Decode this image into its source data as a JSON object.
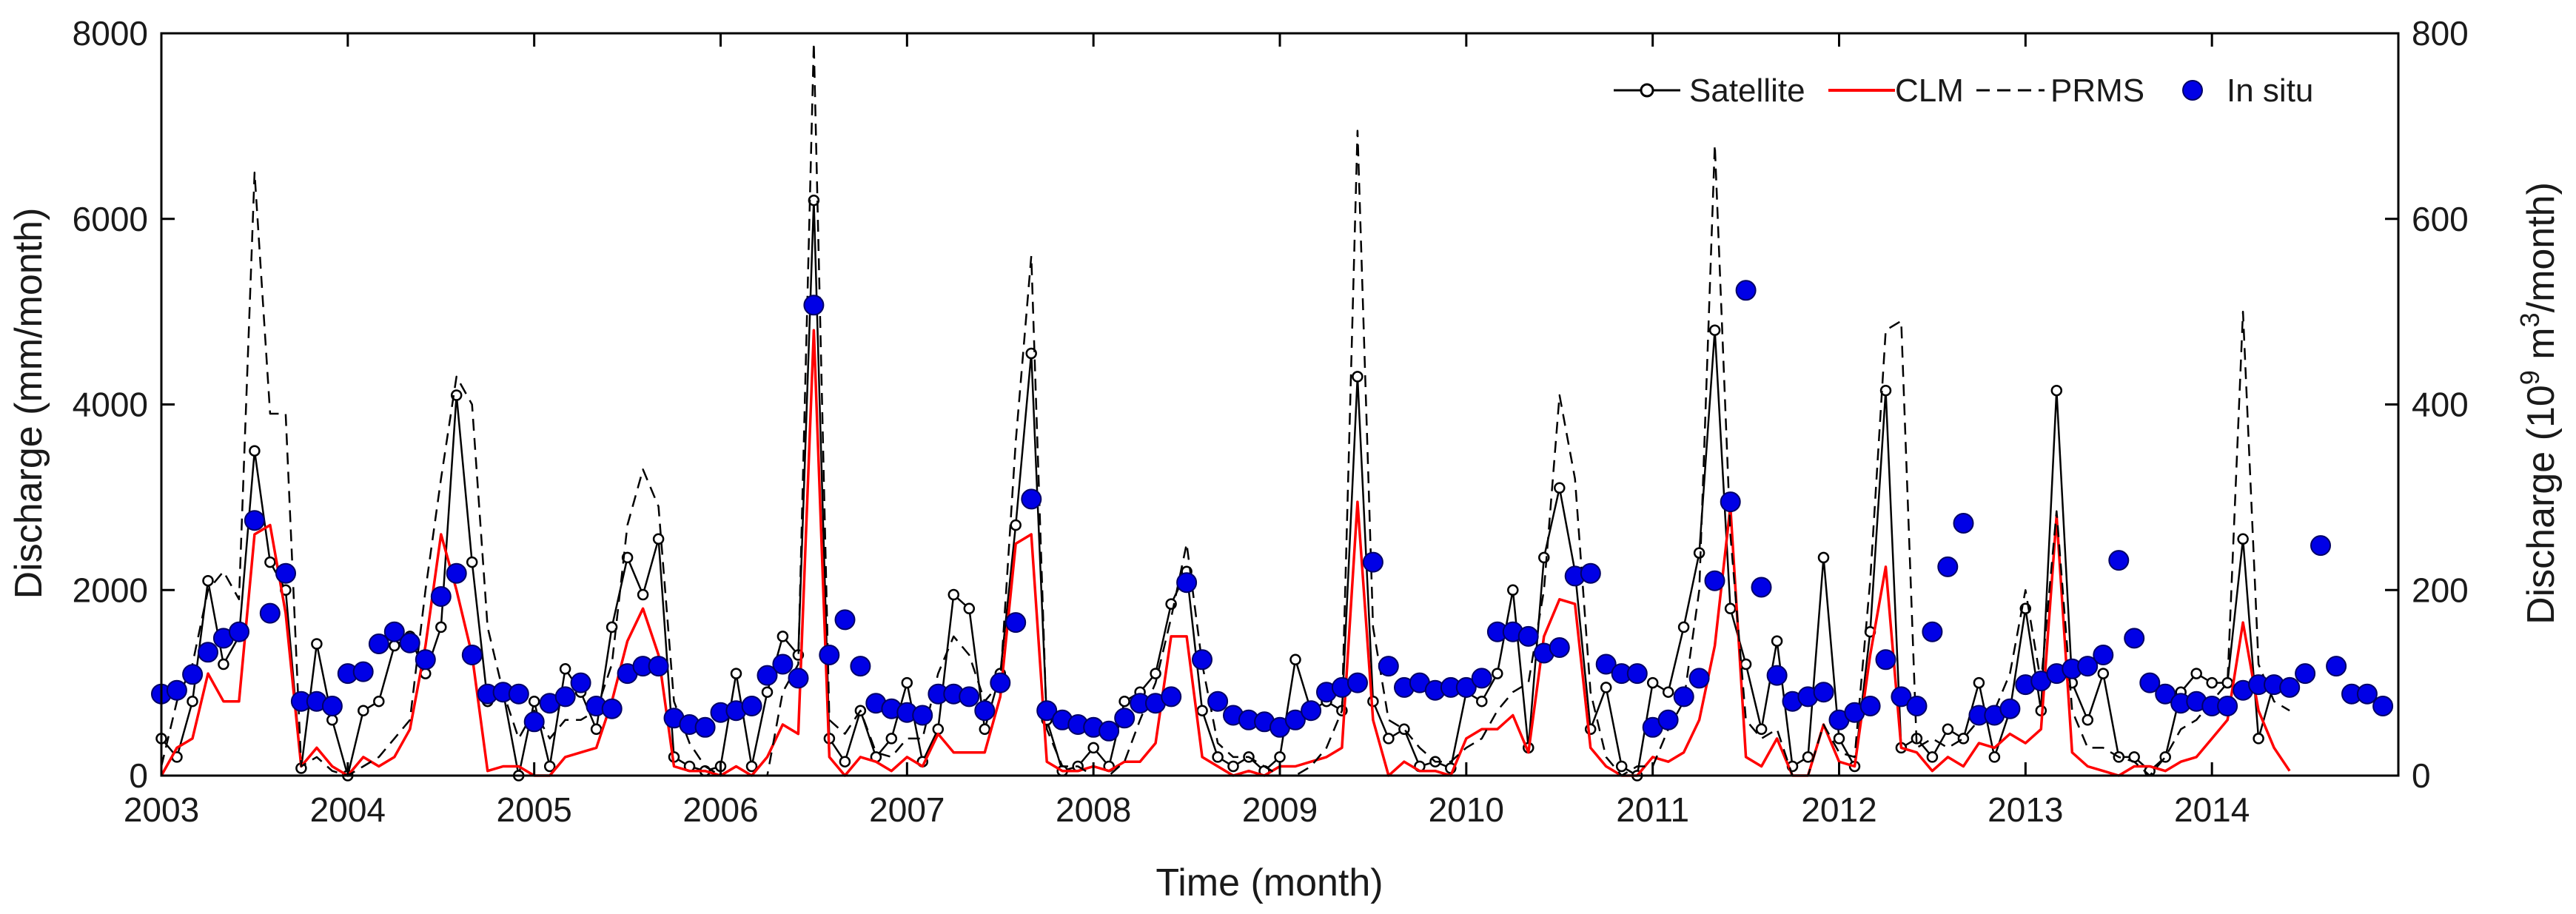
{
  "chart_data": {
    "type": "line",
    "title": "",
    "xlabel": "Time (month)",
    "ylabel_left": "Discharge (mm/month)",
    "ylabel_right_parts": [
      "Discharge (10",
      "9",
      " m",
      "3",
      "/month)"
    ],
    "xlim": [
      2003.0,
      2015.0
    ],
    "ylim_left": [
      0,
      8000
    ],
    "ylim_right": [
      0,
      800
    ],
    "x_ticks": [
      2003,
      2004,
      2005,
      2006,
      2007,
      2008,
      2009,
      2010,
      2011,
      2012,
      2013,
      2014
    ],
    "y_ticks_left": [
      0,
      2000,
      4000,
      6000,
      8000
    ],
    "y_ticks_right": [
      0,
      200,
      400,
      600,
      800
    ],
    "legend_position": "top-right",
    "legend": [
      "Satellite",
      "CLM",
      "PRMS",
      "In situ"
    ],
    "series": [
      {
        "name": "Satellite",
        "axis": "left",
        "style": "line-open-circle",
        "color": "#000000",
        "values": [
          400,
          200,
          800,
          2100,
          1200,
          1500,
          3500,
          2300,
          2000,
          80,
          1420,
          600,
          0,
          700,
          800,
          1400,
          1500,
          1100,
          1600,
          4100,
          2300,
          800,
          900,
          0,
          800,
          100,
          1150,
          900,
          500,
          1600,
          2350,
          1950,
          2550,
          200,
          100,
          50,
          100,
          1100,
          100,
          900,
          1500,
          1300,
          6200,
          400,
          150,
          700,
          200,
          400,
          1000,
          150,
          500,
          1950,
          1800,
          500,
          1100,
          2700,
          4550,
          600,
          50,
          100,
          300,
          100,
          800,
          900,
          1100,
          1850,
          2200,
          700,
          200,
          100,
          200,
          50,
          200,
          1250,
          700,
          800,
          700,
          4300,
          800,
          400,
          500,
          100,
          150,
          80,
          900,
          800,
          1100,
          2000,
          300,
          2350,
          3100,
          2200,
          500,
          950,
          100,
          0,
          1000,
          900,
          1600,
          2400,
          4800,
          1800,
          1200,
          500,
          1450,
          100,
          200,
          2350,
          400,
          100,
          1550,
          4150,
          300,
          400,
          200,
          500,
          400,
          1000,
          200,
          700,
          1800,
          700,
          4150,
          1000,
          600,
          1100,
          200,
          200,
          50,
          200,
          900,
          1100,
          1000,
          1000,
          2550,
          400,
          1000,
          1000
        ]
      },
      {
        "name": "CLM",
        "axis": "left",
        "style": "line",
        "color": "#ff0000",
        "values": [
          0,
          300,
          400,
          1100,
          800,
          800,
          2600,
          2700,
          1750,
          100,
          300,
          100,
          0,
          200,
          100,
          200,
          500,
          1400,
          2600,
          2000,
          1300,
          50,
          100,
          100,
          0,
          0,
          200,
          250,
          300,
          800,
          1450,
          1800,
          1300,
          100,
          50,
          50,
          0,
          100,
          0,
          200,
          550,
          450,
          4800,
          200,
          0,
          200,
          150,
          50,
          200,
          100,
          450,
          250,
          250,
          250,
          850,
          2500,
          2600,
          150,
          50,
          50,
          100,
          50,
          150,
          150,
          350,
          1500,
          1500,
          200,
          100,
          0,
          50,
          0,
          100,
          100,
          150,
          200,
          300,
          2950,
          600,
          0,
          150,
          50,
          50,
          0,
          400,
          500,
          500,
          650,
          250,
          1500,
          1900,
          1850,
          300,
          100,
          0,
          0,
          200,
          150,
          250,
          600,
          1400,
          2900,
          200,
          100,
          400,
          0,
          0,
          550,
          150,
          100,
          1300,
          2250,
          300,
          250,
          50,
          200,
          100,
          350,
          300,
          450,
          350,
          500,
          2800,
          250,
          100,
          50,
          0,
          100,
          100,
          50,
          150,
          200,
          400,
          600,
          1650,
          700,
          300,
          50
        ]
      },
      {
        "name": "PRMS",
        "axis": "left",
        "style": "dashed",
        "color": "#000000",
        "values": [
          100,
          800,
          1200,
          2000,
          2200,
          1900,
          6500,
          3900,
          3900,
          100,
          200,
          50,
          0,
          100,
          200,
          400,
          600,
          2000,
          3200,
          4300,
          4000,
          1600,
          900,
          400,
          700,
          400,
          600,
          600,
          700,
          1200,
          2700,
          3300,
          2900,
          800,
          350,
          100,
          0,
          0,
          0,
          0,
          900,
          1200,
          7900,
          600,
          450,
          700,
          250,
          200,
          400,
          400,
          1100,
          1500,
          1300,
          800,
          1000,
          3600,
          5600,
          500,
          100,
          100,
          0,
          0,
          150,
          600,
          1000,
          1700,
          2500,
          1200,
          350,
          200,
          200,
          100,
          0,
          0,
          100,
          300,
          700,
          6950,
          1600,
          600,
          500,
          300,
          150,
          150,
          300,
          400,
          700,
          900,
          1000,
          2000,
          4100,
          3200,
          900,
          200,
          0,
          100,
          100,
          500,
          800,
          2000,
          6800,
          2600,
          600,
          400,
          500,
          0,
          0,
          550,
          250,
          200,
          2100,
          4800,
          4900,
          300,
          400,
          300,
          400,
          600,
          700,
          1100,
          2000,
          1000,
          2850,
          700,
          300,
          300,
          200,
          150,
          0,
          200,
          500,
          600,
          800,
          1000,
          5000,
          1200,
          800,
          700
        ]
      },
      {
        "name": "In situ",
        "axis": "right",
        "style": "markers",
        "color": "#0000e6",
        "points": [
          [
            2003.0,
            88
          ],
          [
            2003.083,
            92
          ],
          [
            2003.167,
            109
          ],
          [
            2003.25,
            133
          ],
          [
            2003.333,
            148
          ],
          [
            2003.417,
            155
          ],
          [
            2003.5,
            275
          ],
          [
            2003.583,
            175
          ],
          [
            2003.667,
            218
          ],
          [
            2003.75,
            80
          ],
          [
            2003.833,
            80
          ],
          [
            2003.917,
            75
          ],
          [
            2004.0,
            110
          ],
          [
            2004.083,
            112
          ],
          [
            2004.167,
            142
          ],
          [
            2004.25,
            155
          ],
          [
            2004.333,
            143
          ],
          [
            2004.417,
            125
          ],
          [
            2004.5,
            193
          ],
          [
            2004.583,
            218
          ],
          [
            2004.667,
            130
          ],
          [
            2004.75,
            88
          ],
          [
            2004.833,
            90
          ],
          [
            2004.917,
            88
          ],
          [
            2005.0,
            58
          ],
          [
            2005.083,
            78
          ],
          [
            2005.167,
            85
          ],
          [
            2005.25,
            100
          ],
          [
            2005.333,
            75
          ],
          [
            2005.417,
            72
          ],
          [
            2005.5,
            110
          ],
          [
            2005.583,
            118
          ],
          [
            2005.667,
            118
          ],
          [
            2005.75,
            62
          ],
          [
            2005.833,
            55
          ],
          [
            2005.917,
            52
          ],
          [
            2006.0,
            68
          ],
          [
            2006.083,
            70
          ],
          [
            2006.167,
            75
          ],
          [
            2006.25,
            108
          ],
          [
            2006.333,
            120
          ],
          [
            2006.417,
            105
          ],
          [
            2006.5,
            507
          ],
          [
            2006.583,
            130
          ],
          [
            2006.667,
            168
          ],
          [
            2006.75,
            118
          ],
          [
            2006.833,
            78
          ],
          [
            2006.917,
            72
          ],
          [
            2007.0,
            68
          ],
          [
            2007.083,
            65
          ],
          [
            2007.167,
            88
          ],
          [
            2007.25,
            88
          ],
          [
            2007.333,
            85
          ],
          [
            2007.417,
            70
          ],
          [
            2007.5,
            100
          ],
          [
            2007.583,
            165
          ],
          [
            2007.667,
            298
          ],
          [
            2007.75,
            70
          ],
          [
            2007.833,
            60
          ],
          [
            2007.917,
            55
          ],
          [
            2008.0,
            52
          ],
          [
            2008.083,
            48
          ],
          [
            2008.167,
            62
          ],
          [
            2008.25,
            78
          ],
          [
            2008.333,
            78
          ],
          [
            2008.417,
            85
          ],
          [
            2008.5,
            208
          ],
          [
            2008.583,
            125
          ],
          [
            2008.667,
            80
          ],
          [
            2008.75,
            65
          ],
          [
            2008.833,
            60
          ],
          [
            2008.917,
            58
          ],
          [
            2009.0,
            52
          ],
          [
            2009.083,
            60
          ],
          [
            2009.167,
            70
          ],
          [
            2009.25,
            90
          ],
          [
            2009.333,
            95
          ],
          [
            2009.417,
            100
          ],
          [
            2009.5,
            230
          ],
          [
            2009.583,
            118
          ],
          [
            2009.667,
            95
          ],
          [
            2009.75,
            100
          ],
          [
            2009.833,
            92
          ],
          [
            2009.917,
            95
          ],
          [
            2010.0,
            95
          ],
          [
            2010.083,
            105
          ],
          [
            2010.167,
            155
          ],
          [
            2010.25,
            155
          ],
          [
            2010.333,
            150
          ],
          [
            2010.417,
            132
          ],
          [
            2010.5,
            138
          ],
          [
            2010.583,
            215
          ],
          [
            2010.667,
            218
          ],
          [
            2010.75,
            120
          ],
          [
            2010.833,
            110
          ],
          [
            2010.917,
            110
          ],
          [
            2011.0,
            52
          ],
          [
            2011.083,
            60
          ],
          [
            2011.167,
            85
          ],
          [
            2011.25,
            105
          ],
          [
            2011.333,
            210
          ],
          [
            2011.417,
            295
          ],
          [
            2011.5,
            523
          ],
          [
            2011.583,
            203
          ],
          [
            2011.667,
            108
          ],
          [
            2011.75,
            80
          ],
          [
            2011.833,
            85
          ],
          [
            2011.917,
            90
          ],
          [
            2012.0,
            60
          ],
          [
            2012.083,
            68
          ],
          [
            2012.167,
            75
          ],
          [
            2012.25,
            125
          ],
          [
            2012.333,
            85
          ],
          [
            2012.417,
            75
          ],
          [
            2012.5,
            155
          ],
          [
            2012.583,
            225
          ],
          [
            2012.667,
            272
          ],
          [
            2012.75,
            65
          ],
          [
            2012.833,
            65
          ],
          [
            2012.917,
            72
          ],
          [
            2013.0,
            98
          ],
          [
            2013.083,
            102
          ],
          [
            2013.167,
            110
          ],
          [
            2013.25,
            115
          ],
          [
            2013.333,
            118
          ],
          [
            2013.417,
            130
          ],
          [
            2013.5,
            232
          ],
          [
            2013.583,
            148
          ],
          [
            2013.667,
            100
          ],
          [
            2013.75,
            88
          ],
          [
            2013.833,
            78
          ],
          [
            2013.917,
            80
          ],
          [
            2014.0,
            75
          ],
          [
            2014.083,
            75
          ],
          [
            2014.167,
            92
          ],
          [
            2014.25,
            98
          ],
          [
            2014.333,
            98
          ],
          [
            2014.417,
            95
          ],
          [
            2014.5,
            110
          ],
          [
            2014.583,
            248
          ],
          [
            2014.667,
            118
          ],
          [
            2014.75,
            88
          ],
          [
            2014.833,
            88
          ],
          [
            2014.917,
            75
          ]
        ]
      }
    ]
  }
}
